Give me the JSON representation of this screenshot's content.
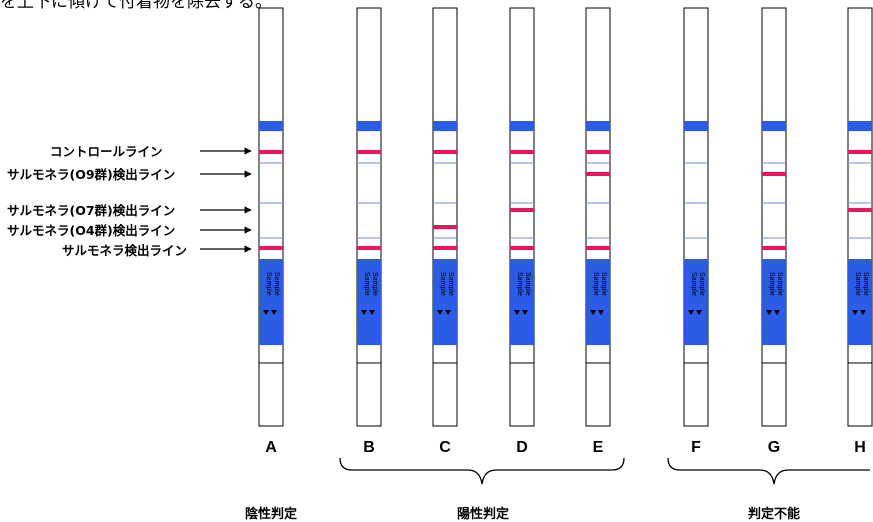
{
  "header_text": "を上下に傾けて付着物を除去する。",
  "line_labels": [
    "コントロールライン",
    "サルモネラ(O9群)検出ライン",
    "サルモネラ(O7群)検出ライン",
    "サルモネラ(O4群)検出ライン",
    "サルモネラ検出ライン"
  ],
  "strips": [
    {
      "letter": "A",
      "lines": {
        "control": true,
        "o9": false,
        "o7": false,
        "o4": false,
        "salmonella": true
      }
    },
    {
      "letter": "B",
      "lines": {
        "control": true,
        "o9": false,
        "o7": false,
        "o4": false,
        "salmonella": true
      }
    },
    {
      "letter": "C",
      "lines": {
        "control": true,
        "o9": false,
        "o7": false,
        "o4": true,
        "salmonella": true
      }
    },
    {
      "letter": "D",
      "lines": {
        "control": true,
        "o9": false,
        "o7": true,
        "o4": false,
        "salmonella": true
      }
    },
    {
      "letter": "E",
      "lines": {
        "control": true,
        "o9": true,
        "o7": false,
        "o4": false,
        "salmonella": true
      }
    },
    {
      "letter": "F",
      "lines": {
        "control": false,
        "o9": false,
        "o7": false,
        "o4": false,
        "salmonella": false
      }
    },
    {
      "letter": "G",
      "lines": {
        "control": false,
        "o9": true,
        "o7": false,
        "o4": false,
        "salmonella": true
      }
    },
    {
      "letter": "H",
      "lines": {
        "control": true,
        "o9": false,
        "o7": true,
        "o4": false,
        "salmonella": false
      }
    }
  ],
  "sample_text": "Sample",
  "groups": [
    "陰性判定",
    "陽性判定",
    "判定不能"
  ],
  "colors": {
    "band_blue": "#2b5ce6",
    "result_pink": "#e8175d",
    "faint_line": "#8aa0e8"
  }
}
